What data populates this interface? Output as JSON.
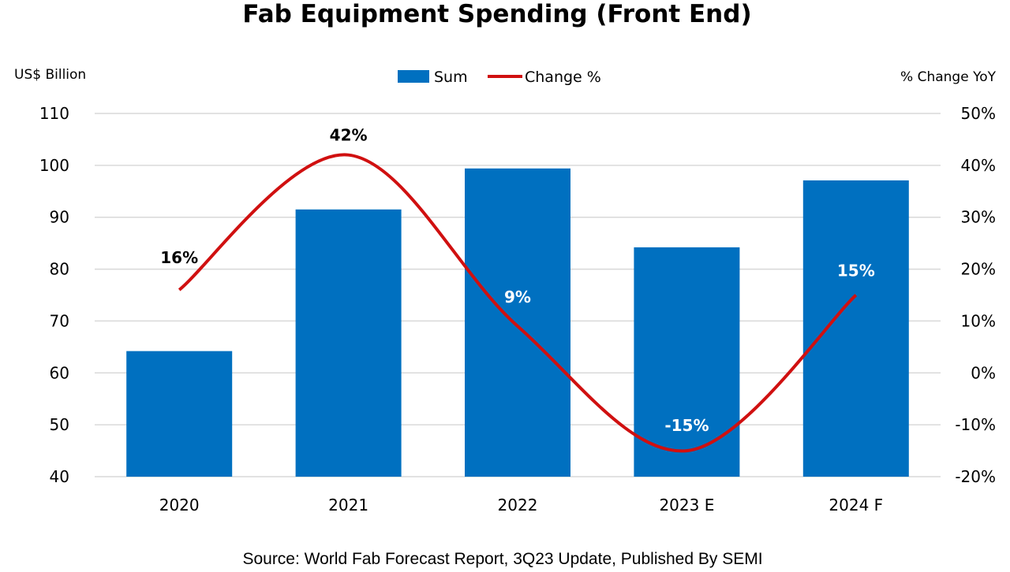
{
  "chart_data": {
    "type": "bar",
    "title": "Fab Equipment Spending (Front End)",
    "source": "Source: World Fab Forecast Report, 3Q23 Update, Published By SEMI",
    "ylabel_left": "US$ Billion",
    "ylabel_right": "% Change YoY",
    "categories": [
      "2020",
      "2021",
      "2022",
      "2023 E",
      "2024 F"
    ],
    "ylim_left": [
      40,
      110
    ],
    "yticks_left": [
      "40",
      "50",
      "60",
      "70",
      "80",
      "90",
      "100",
      "110"
    ],
    "ylim_right": [
      -20,
      50
    ],
    "yticks_right": [
      "-20%",
      "-10%",
      "0%",
      "10%",
      "20%",
      "30%",
      "40%",
      "50%"
    ],
    "grid": true,
    "legend_placement": "top-center",
    "series": [
      {
        "name": "Sum",
        "type": "bar",
        "axis": "left",
        "color": "#0070C0",
        "values": [
          64.2,
          91.5,
          99.4,
          84.2,
          97.1
        ]
      },
      {
        "name": "Change %",
        "type": "line",
        "axis": "right",
        "color": "#D01010",
        "smooth": true,
        "values": [
          16,
          42,
          9,
          -15,
          15
        ],
        "labels": [
          "16%",
          "42%",
          "9%",
          "-15%",
          "15%"
        ]
      }
    ]
  }
}
